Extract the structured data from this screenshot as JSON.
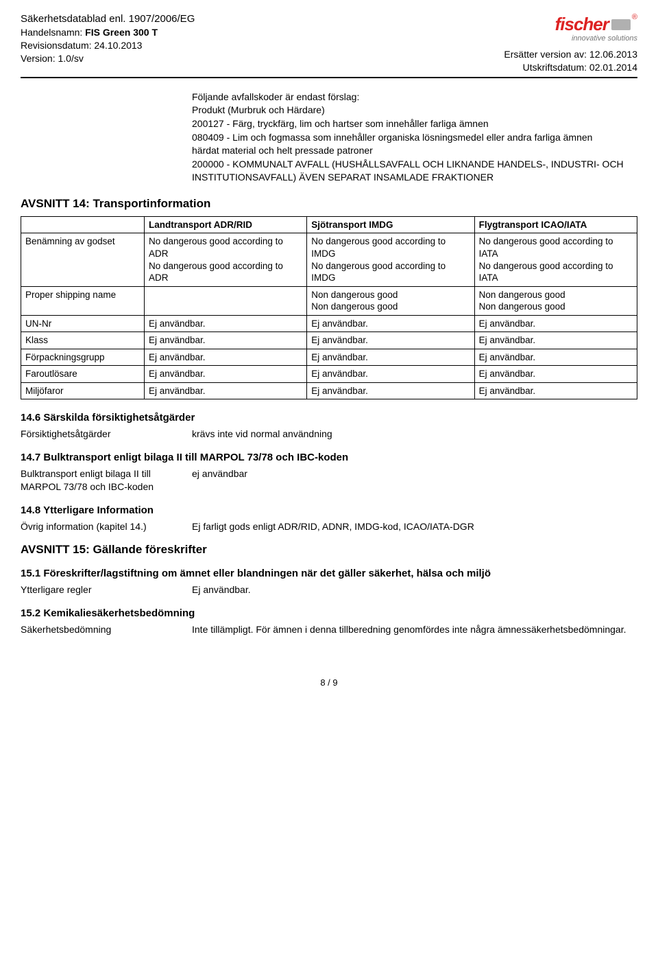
{
  "header": {
    "title": "Säkerhetsdatablad enl. 1907/2006/EG",
    "tradeLabel": "Handelsnamn: ",
    "tradeName": "FIS Green 300 T",
    "revLabel": "Revisionsdatum: ",
    "revDate": "24.10.2013",
    "verLabel": "Version: ",
    "version": "1.0/sv",
    "replacesLabel": "Ersätter version av: ",
    "replaces": "12.06.2013",
    "printLabel": "Utskriftsdatum: ",
    "printDate": "02.01.2014",
    "logoText": "fischer",
    "slogan": "innovative solutions"
  },
  "waste": {
    "intro": "Följande avfallskoder är endast förslag:",
    "line1": "Produkt (Murbruk och Härdare)",
    "line2": "200127 - Färg, tryckfärg, lim och hartser som innehåller farliga ämnen",
    "line3": "080409 - Lim och fogmassa som innehåller organiska lösningsmedel eller andra farliga ämnen",
    "line4": "härdat material och helt pressade patroner",
    "line5": "200000 - KOMMUNALT AVFALL (HUSHÅLLSAVFALL OCH LIKNANDE HANDELS-, INDUSTRI- OCH INSTITUTIONSAVFALL) ÄVEN SEPARAT INSAMLADE FRAKTIONER"
  },
  "s14": {
    "title": "AVSNITT 14: Transportinformation",
    "cols": [
      "",
      "Landtransport ADR/RID",
      "Sjötransport IMDG",
      "Flygtransport ICAO/IATA"
    ],
    "rows": [
      {
        "label": "Benämning av godset",
        "adr": "No dangerous good according to ADR\nNo dangerous good according to ADR",
        "imdg": "No dangerous good according to IMDG\nNo dangerous good according to IMDG",
        "icao": "No dangerous good according to IATA\nNo dangerous good according to IATA"
      },
      {
        "label": "Proper shipping name",
        "adr": "",
        "imdg": "Non dangerous good\nNon dangerous good",
        "icao": "Non dangerous good\nNon dangerous good"
      },
      {
        "label": "UN-Nr",
        "adr": "Ej användbar.",
        "imdg": "Ej användbar.",
        "icao": "Ej användbar."
      },
      {
        "label": "Klass",
        "adr": "Ej användbar.",
        "imdg": "Ej användbar.",
        "icao": "Ej användbar."
      },
      {
        "label": "Förpackningsgrupp",
        "adr": "Ej användbar.",
        "imdg": "Ej användbar.",
        "icao": "Ej användbar."
      },
      {
        "label": "Faroutlösare",
        "adr": "Ej användbar.",
        "imdg": "Ej användbar.",
        "icao": "Ej användbar."
      },
      {
        "label": "Miljöfaror",
        "adr": "Ej användbar.",
        "imdg": "Ej användbar.",
        "icao": "Ej användbar."
      }
    ],
    "s146": {
      "title": "14.6 Särskilda försiktighetsåtgärder",
      "label": "Försiktighetsåtgärder",
      "val": "krävs inte vid normal användning"
    },
    "s147": {
      "title": "14.7 Bulktransport enligt bilaga II till MARPOL 73/78 och IBC-koden",
      "label": "Bulktransport enligt bilaga II till MARPOL 73/78 och IBC-koden",
      "val": "ej användbar"
    },
    "s148": {
      "title": "14.8 Ytterligare Information",
      "label": "Övrig information (kapitel 14.)",
      "val": "Ej farligt gods enligt ADR/RID, ADNR, IMDG-kod, ICAO/IATA-DGR"
    }
  },
  "s15": {
    "title": "AVSNITT 15: Gällande föreskrifter",
    "s151": {
      "title": "15.1 Föreskrifter/lagstiftning om ämnet eller blandningen när det gäller säkerhet, hälsa och miljö",
      "label": "Ytterligare regler",
      "val": "Ej användbar."
    },
    "s152": {
      "title": "15.2 Kemikaliesäkerhetsbedömning",
      "label": "Säkerhetsbedömning",
      "val": "Inte tillämpligt. För ämnen i denna tillberedning genomfördes inte några ämnessäkerhetsbedömningar."
    }
  },
  "pageFoot": "8 / 9"
}
